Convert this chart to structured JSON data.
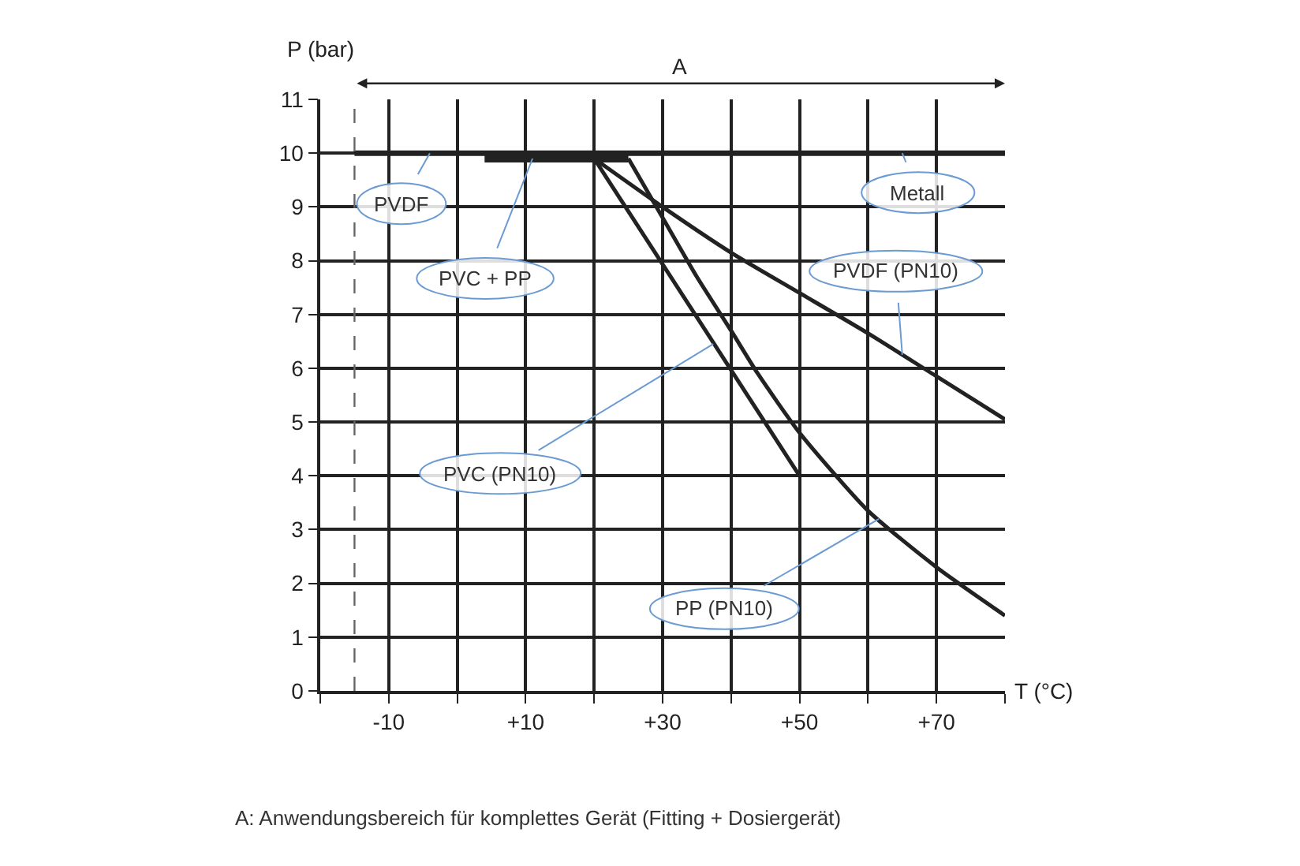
{
  "chart_data": {
    "type": "line",
    "xlabel": "T (°C)",
    "ylabel": "P (bar)",
    "xlim": [
      -20,
      80
    ],
    "xticks": [
      {
        "value": -20,
        "label": null
      },
      {
        "value": -10,
        "label": "-10"
      },
      {
        "value": 0,
        "label": null
      },
      {
        "value": 10,
        "label": "+10"
      },
      {
        "value": 20,
        "label": null
      },
      {
        "value": 30,
        "label": "+30"
      },
      {
        "value": 40,
        "label": null
      },
      {
        "value": 50,
        "label": "+50"
      },
      {
        "value": 60,
        "label": null
      },
      {
        "value": 70,
        "label": "+70"
      },
      {
        "value": 80,
        "label": null
      }
    ],
    "ylim": [
      0,
      11
    ],
    "yticks": [
      0,
      1,
      2,
      3,
      4,
      5,
      6,
      7,
      8,
      9,
      10,
      11
    ],
    "grid": true,
    "legend": false,
    "marker": "none",
    "line_style": "solid",
    "series": [
      {
        "color": "#222222",
        "x": [
          -15,
          80
        ],
        "values": [
          10,
          10
        ]
      },
      {
        "color": "#222222",
        "x": [
          4,
          25
        ],
        "values": [
          9.9,
          9.9
        ]
      },
      {
        "color": "#222222",
        "x": [
          20,
          30,
          40,
          50,
          60,
          70,
          80
        ],
        "values": [
          9.9,
          9.0,
          8.15,
          7.4,
          6.65,
          5.85,
          5.05
        ]
      },
      {
        "color": "#222222",
        "x": [
          20,
          50
        ],
        "values": [
          9.9,
          4
        ]
      },
      {
        "color": "#222222",
        "x": [
          25,
          30,
          35,
          40,
          43.9,
          50,
          60,
          70,
          80
        ],
        "values": [
          9.9,
          8.8,
          7.7,
          6.7,
          5.9,
          4.8,
          3.35,
          2.3,
          1.4
        ]
      }
    ],
    "ref_lines": [
      {
        "axis": "x",
        "value": -15,
        "line_style": "dashed",
        "color": "#666666"
      }
    ],
    "annotations": [
      {
        "text": "PVDF",
        "x": -4,
        "y": 10
      },
      {
        "text": "PVC + PP",
        "x": 11,
        "y": 9.9
      },
      {
        "text": "Metall",
        "x": 65,
        "y": 10
      },
      {
        "text": "PVDF (PN10)",
        "x": 65,
        "y": 6.25
      },
      {
        "text": "PVC (PN10)",
        "x": 37.4,
        "y": 6.45
      },
      {
        "text": "PP (PN10)",
        "x": 61.6,
        "y": 3.2
      },
      "A",
      "A: Anwendungsbereich für komplettes Gerät (Fitting + Dosiergerät)"
    ]
  }
}
